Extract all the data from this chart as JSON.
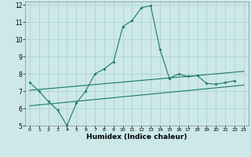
{
  "xlabel": "Humidex (Indice chaleur)",
  "xlim": [
    -0.5,
    23.5
  ],
  "ylim": [
    5,
    12.2
  ],
  "yticks": [
    5,
    6,
    7,
    8,
    9,
    10,
    11,
    12
  ],
  "xticks": [
    0,
    1,
    2,
    3,
    4,
    5,
    6,
    7,
    8,
    9,
    10,
    11,
    12,
    13,
    14,
    15,
    16,
    17,
    18,
    19,
    20,
    21,
    22,
    23
  ],
  "bg_color": "#cce8e8",
  "grid_color": "#aacccc",
  "line_color": "#1a7a6a",
  "line1_x": [
    0,
    1,
    2,
    3,
    4,
    5,
    6,
    7,
    8,
    9,
    10,
    11,
    12,
    13,
    14,
    15,
    16,
    17,
    18,
    19,
    20,
    21,
    22
  ],
  "line1_y": [
    7.5,
    7.0,
    6.4,
    5.9,
    5.0,
    6.3,
    7.0,
    8.0,
    8.3,
    8.7,
    10.75,
    11.1,
    11.85,
    11.95,
    9.4,
    7.75,
    8.0,
    7.85,
    7.9,
    7.45,
    7.4,
    7.5,
    7.6
  ],
  "line2_x": [
    0,
    23
  ],
  "line2_y": [
    7.05,
    8.15
  ],
  "line3_x": [
    0,
    23
  ],
  "line3_y": [
    6.15,
    7.35
  ]
}
